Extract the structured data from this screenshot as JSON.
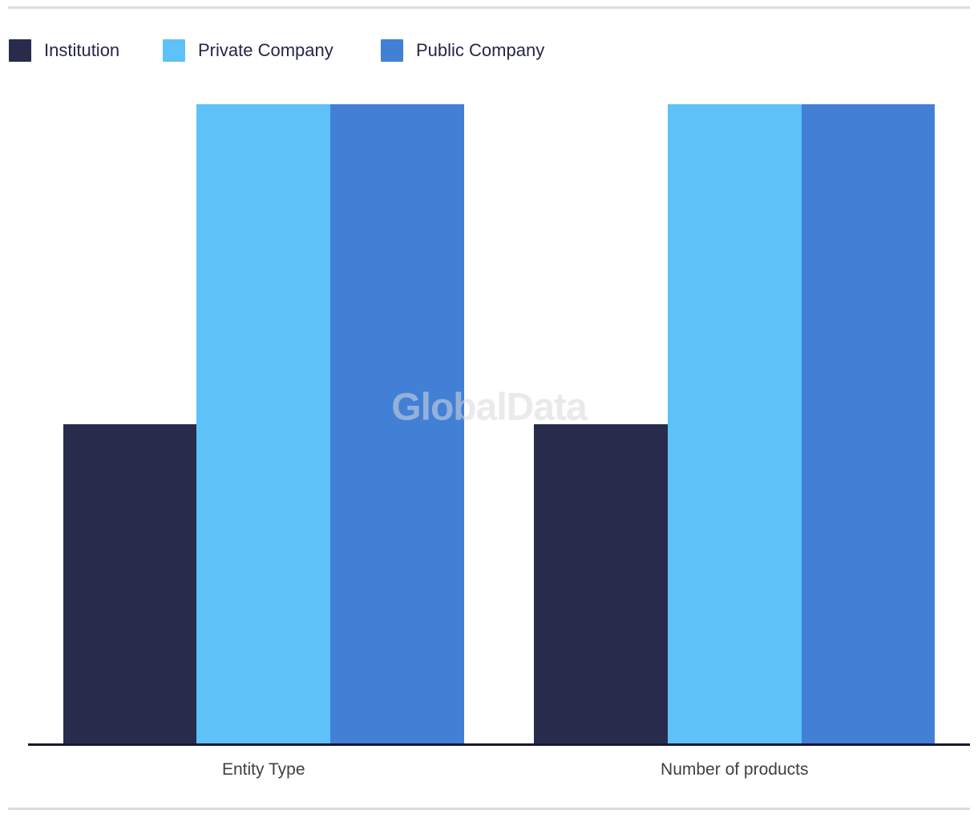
{
  "watermark": {
    "text": "GlobalData"
  },
  "legend": {
    "items": [
      {
        "label": "Institution",
        "color": "#292b4d",
        "x": 11
      },
      {
        "label": "Private Company",
        "color": "#5ec1f8",
        "x": 203
      },
      {
        "label": "Public Company",
        "color": "#4280d6",
        "x": 475
      }
    ]
  },
  "chart_data": {
    "type": "bar",
    "categories": [
      "Entity Type",
      "Number of products"
    ],
    "series": [
      {
        "name": "Institution",
        "color": "#292b4d",
        "values": [
          1,
          1
        ]
      },
      {
        "name": "Private Company",
        "color": "#5ec1f8",
        "values": [
          2,
          2
        ]
      },
      {
        "name": "Public Company",
        "color": "#4280d6",
        "values": [
          2,
          2
        ]
      }
    ],
    "ylim": [
      0,
      2
    ],
    "grid": false,
    "y_axis_visible": false,
    "legend_position": "top-left",
    "axis_line_color": "#171834",
    "watermark_text": "GlobalData"
  }
}
